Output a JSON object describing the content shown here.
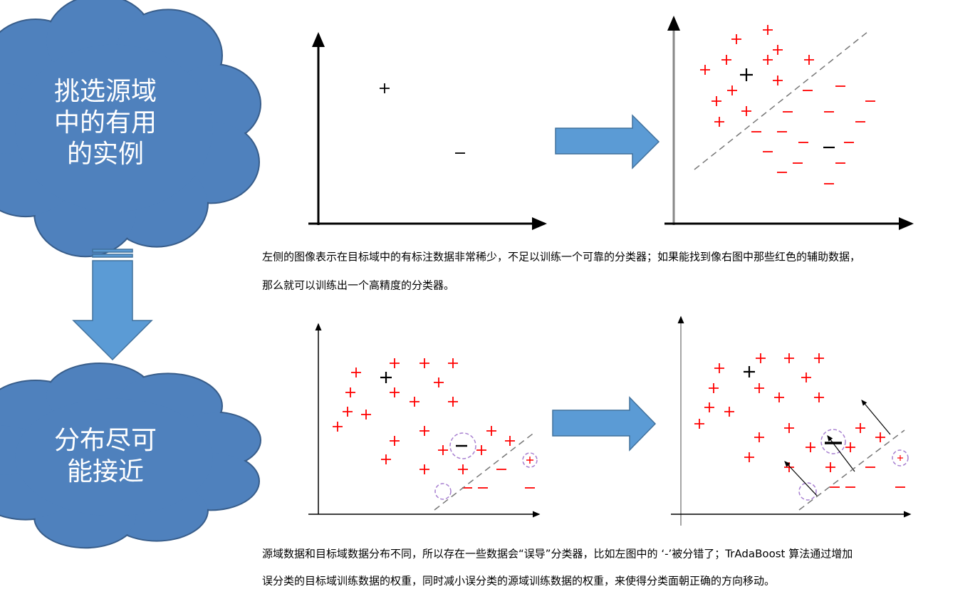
{
  "cloud_top": {
    "lines": [
      "挑选源域",
      "中的有用",
      "的实例"
    ]
  },
  "cloud_bottom": {
    "lines": [
      "分布尽可",
      "能接近"
    ]
  },
  "caption_top": {
    "lines": [
      "左侧的图像表示在目标域中的有标注数据非常稀少，不足以训练一个可靠的分类器；如果能找到像右图中那些红色的辅助数据，",
      "那么就可以训练出一个高精度的分类器。"
    ]
  },
  "caption_bottom": {
    "lines": [
      "源域数据和目标域数据分布不同，所以存在一些数据会“误导”分类器，比如左图中的 ‘-’被分错了；TrAdaBoost 算法通过增加",
      "误分类的目标域训练数据的权重，同时减小误分类的源域训练数据的权重，来使得分类面朝正确的方向移动。"
    ]
  }
}
